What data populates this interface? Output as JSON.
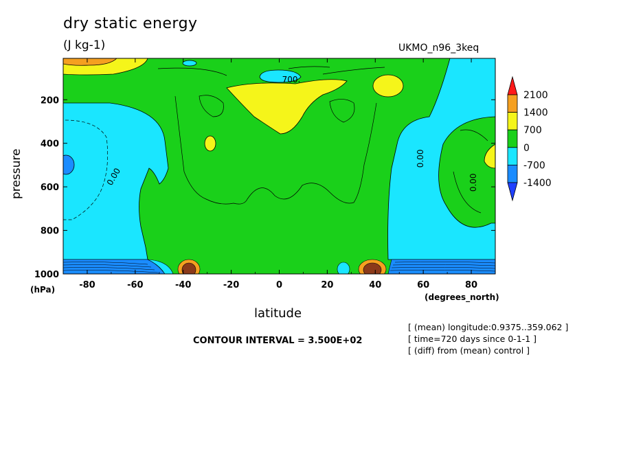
{
  "header": {
    "title": "dry static energy",
    "units": "(J kg-1)",
    "model": "UKMO_n96_3keq"
  },
  "footer": {
    "contour_interval": "CONTOUR INTERVAL = 3.500E+02",
    "notes": [
      "[ (mean) longitude:0.9375..359.062 ]",
      "[ time=720 days since 0-1-1 ]",
      "[ (diff) from (mean) control ]"
    ]
  },
  "chart_data": {
    "type": "heatmap",
    "title": "dry static energy",
    "xlabel": "latitude",
    "xunits": "(degrees_north)",
    "ylabel": "pressure",
    "yunits": "(hPa)",
    "xlim": [
      -90,
      90
    ],
    "ylim": [
      1000,
      10
    ],
    "y_reversed": true,
    "x_ticks": [
      -80,
      -60,
      -40,
      -20,
      0,
      20,
      40,
      60,
      80
    ],
    "x_tick_labels": [
      "-80",
      "-60",
      "-40",
      "-20",
      "0",
      "20",
      "40",
      "60",
      "80"
    ],
    "y_ticks": [
      200,
      400,
      600,
      800,
      1000
    ],
    "y_tick_labels": [
      "200",
      "400",
      "600",
      "800",
      "1000"
    ],
    "colorbar": {
      "levels": [
        -1400,
        -700,
        0,
        700,
        1400,
        2100
      ],
      "labels": [
        "2100",
        "1400",
        "700",
        "0",
        "-700",
        "-1400"
      ],
      "colors": [
        "#ff1a1a",
        "#f5a020",
        "#f5f51a",
        "#1ad01a",
        "#1ae6ff",
        "#1a8cff",
        "#2040ff"
      ]
    },
    "contour_labels": [
      {
        "text": "700.",
        "lat": 5,
        "p": 120
      },
      {
        "text": "0.00",
        "lat": -68,
        "p": 560
      },
      {
        "text": "0.00",
        "lat": 60,
        "p": 470
      },
      {
        "text": "0.00",
        "lat": 82,
        "p": 580
      }
    ],
    "regions": [
      {
        "range": "0 to 700",
        "color": "green",
        "description": "bulk of domain"
      },
      {
        "range": "-700 to 0",
        "color": "cyan",
        "lat_range": [
          -90,
          -48
        ],
        "p_range": [
          250,
          950
        ]
      },
      {
        "range": "-700 to 0",
        "color": "cyan",
        "lat_range": [
          50,
          90
        ],
        "p_range": [
          30,
          950
        ]
      },
      {
        "range": "700 to 1400",
        "color": "yellow",
        "lat_range": [
          -25,
          30
        ],
        "p_range": [
          80,
          350
        ]
      },
      {
        "range": "700 to 1400",
        "color": "yellow",
        "lat_range": [
          -90,
          -60
        ],
        "p_range": [
          10,
          60
        ]
      },
      {
        "range": "1400 to 2100",
        "color": "orange",
        "lat_range": [
          -82,
          -72
        ],
        "p_range": [
          10,
          25
        ]
      }
    ],
    "contour_interval": 350
  }
}
